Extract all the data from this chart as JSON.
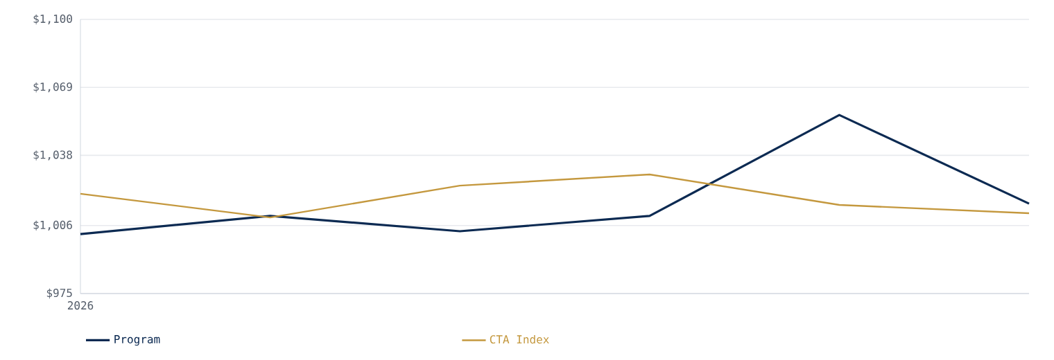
{
  "chart_data": {
    "type": "line",
    "categories": [
      "2026",
      null,
      null,
      null,
      null,
      null
    ],
    "series": [
      {
        "name": "Program",
        "color": "#0c2a52",
        "values": [
          1002.1,
          1010.4,
          1003.4,
          1010.4,
          1056.4,
          1016.0
        ]
      },
      {
        "name": "CTA Index",
        "color": "#c4983e",
        "values": [
          1020.5,
          1009.7,
          1024.2,
          1029.3,
          1015.4,
          1011.6
        ]
      }
    ],
    "ylim": [
      975,
      1100
    ],
    "yticks": [
      {
        "value": 975,
        "label": "$975"
      },
      {
        "value": 1006,
        "label": "$1,006"
      },
      {
        "value": 1038,
        "label": "$1,038"
      },
      {
        "value": 1069,
        "label": "$1,069"
      },
      {
        "value": 1100,
        "label": "$1,100"
      }
    ],
    "grid": "y",
    "legend": "bottom",
    "marker": "none",
    "line_style": "solid"
  }
}
